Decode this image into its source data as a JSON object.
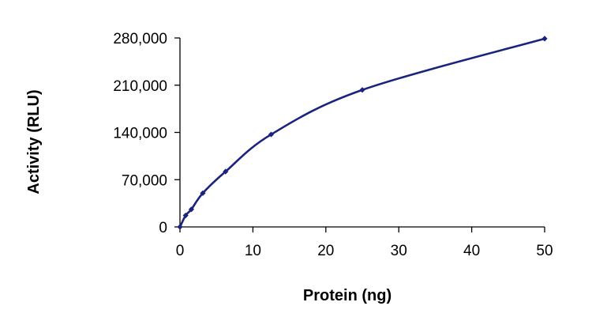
{
  "chart_data": {
    "type": "line",
    "title": "",
    "xlabel": "Protein (ng)",
    "ylabel": "Activity (RLU)",
    "xlim": [
      0,
      50
    ],
    "ylim": [
      0,
      280000
    ],
    "x_ticks": [
      0,
      10,
      20,
      30,
      40,
      50
    ],
    "y_ticks": [
      0,
      70000,
      140000,
      210000,
      280000
    ],
    "x_tick_labels": [
      "0",
      "10",
      "20",
      "30",
      "40",
      "50"
    ],
    "y_tick_labels": [
      "0",
      "70,000",
      "140,000",
      "210,000",
      "280,000"
    ],
    "grid": false,
    "legend": "none",
    "series": [
      {
        "color": "#1a237e",
        "marker": "diamond",
        "x": [
          0,
          0.78,
          1.56,
          3.13,
          6.25,
          12.5,
          25,
          50
        ],
        "y": [
          0,
          17000,
          26000,
          50000,
          82000,
          137000,
          203000,
          279000
        ]
      }
    ]
  }
}
